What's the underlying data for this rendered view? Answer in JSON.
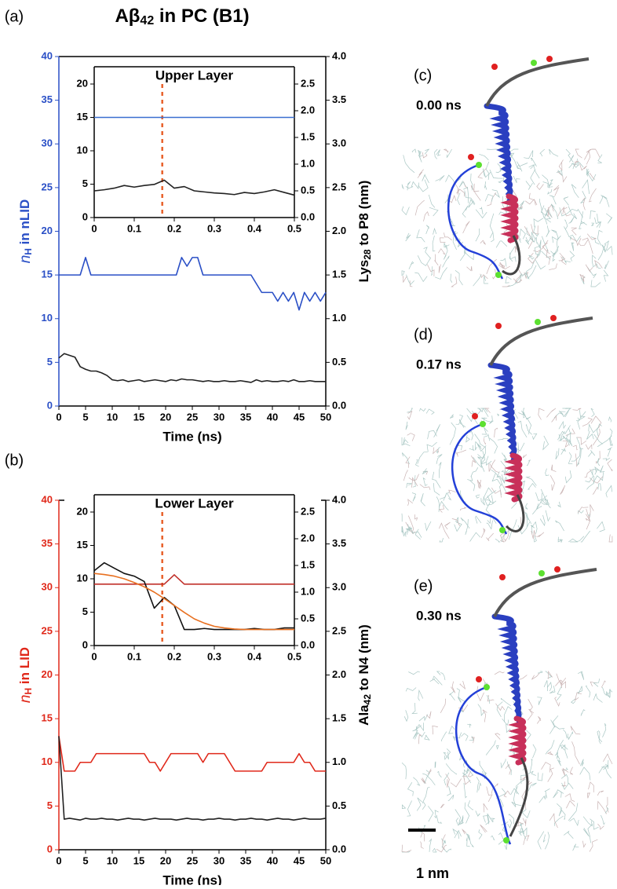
{
  "title": [
    "Aβ",
    "42",
    " in PC (B1)"
  ],
  "chart_data": [
    {
      "type": "line",
      "label": "(a)",
      "xlabel": "Time (ns)",
      "ylabel": [
        "n",
        "H",
        " in nLID"
      ],
      "y2label": [
        "Lys",
        "28",
        " to P8 (nm)"
      ],
      "ycolor": "#2a4fc6",
      "x": [
        0,
        1,
        2,
        3,
        4,
        5,
        6,
        7,
        8,
        9,
        10,
        11,
        12,
        13,
        14,
        15,
        16,
        17,
        18,
        19,
        20,
        21,
        22,
        23,
        24,
        25,
        26,
        27,
        28,
        29,
        30,
        31,
        32,
        33,
        34,
        35,
        36,
        37,
        38,
        39,
        40,
        41,
        42,
        43,
        44,
        45,
        46,
        47,
        48,
        49,
        50
      ],
      "xlim": [
        0,
        50
      ],
      "xticks": [
        0,
        5,
        10,
        15,
        20,
        25,
        30,
        35,
        40,
        45,
        50
      ],
      "ylim": [
        0,
        40
      ],
      "yticks": [
        0,
        5,
        10,
        15,
        20,
        25,
        30,
        35,
        40
      ],
      "y2lim": [
        0,
        4
      ],
      "y2ticks": [
        {
          "value": 0,
          "label": "0.0"
        },
        0.5,
        {
          "value": 1,
          "label": "1.0"
        },
        1.5,
        {
          "value": 2,
          "label": "2.0"
        },
        2.5,
        {
          "value": 3,
          "label": "3.0"
        },
        3.5,
        {
          "value": 4,
          "label": "4.0"
        }
      ],
      "series": [
        {
          "color": "#2a4fc6",
          "values": [
            15,
            15,
            15,
            15,
            15,
            17,
            15,
            15,
            15,
            15,
            15,
            15,
            15,
            15,
            15,
            15,
            15,
            15,
            15,
            15,
            15,
            15,
            15,
            17,
            16,
            17,
            17,
            15,
            15,
            15,
            15,
            15,
            15,
            15,
            15,
            15,
            15,
            14,
            13,
            13,
            13,
            12,
            13,
            12,
            13,
            11,
            13,
            12,
            13,
            12,
            13
          ]
        },
        {
          "color": "#222222",
          "axis": "y2",
          "values": [
            0.55,
            0.6,
            0.58,
            0.56,
            0.45,
            0.42,
            0.4,
            0.4,
            0.38,
            0.35,
            0.3,
            0.29,
            0.3,
            0.28,
            0.29,
            0.3,
            0.28,
            0.29,
            0.3,
            0.29,
            0.28,
            0.3,
            0.29,
            0.31,
            0.3,
            0.3,
            0.29,
            0.28,
            0.29,
            0.28,
            0.28,
            0.29,
            0.28,
            0.28,
            0.29,
            0.28,
            0.27,
            0.3,
            0.28,
            0.29,
            0.28,
            0.28,
            0.29,
            0.28,
            0.3,
            0.28,
            0.28,
            0.29,
            0.28,
            0.28,
            0.28
          ]
        }
      ]
    },
    {
      "type": "line",
      "inset": true,
      "title": "Upper Layer",
      "vline": 0.17,
      "x": [
        0,
        0.025,
        0.05,
        0.075,
        0.1,
        0.125,
        0.15,
        0.175,
        0.2,
        0.225,
        0.25,
        0.275,
        0.3,
        0.325,
        0.35,
        0.375,
        0.4,
        0.425,
        0.45,
        0.475,
        0.5
      ],
      "xlim": [
        0,
        0.5
      ],
      "xticks": [
        0,
        0.1,
        0.2,
        0.3,
        0.4,
        0.5
      ],
      "ylim": [
        0,
        20
      ],
      "yticks": [
        0,
        5,
        10,
        15,
        20
      ],
      "y2lim": [
        0,
        2.5
      ],
      "y2ticks": [
        {
          "value": 0,
          "label": "0.0"
        },
        0.5,
        {
          "value": 1,
          "label": "1.0"
        },
        1.5,
        {
          "value": 2,
          "label": "2.0"
        },
        2.5
      ],
      "series": [
        {
          "color": "#3a6fd0",
          "values": [
            15,
            15,
            15,
            15,
            15,
            15,
            15,
            15,
            15,
            15,
            15,
            15,
            15,
            15,
            15,
            15,
            15,
            15,
            15,
            15,
            15
          ]
        },
        {
          "color": "#222222",
          "axis": "y2",
          "values": [
            0.5,
            0.52,
            0.55,
            0.6,
            0.57,
            0.6,
            0.62,
            0.7,
            0.55,
            0.58,
            0.5,
            0.48,
            0.46,
            0.45,
            0.43,
            0.47,
            0.45,
            0.48,
            0.52,
            0.47,
            0.42
          ]
        }
      ]
    },
    {
      "type": "line",
      "label": "(b)",
      "xlabel": "Time (ns)",
      "ylabel": [
        "n",
        "H",
        " in LID"
      ],
      "y2label": [
        "Ala",
        "42",
        " to N4 (nm)"
      ],
      "ycolor": "#e0281a",
      "x": [
        0,
        1,
        2,
        3,
        4,
        5,
        6,
        7,
        8,
        9,
        10,
        11,
        12,
        13,
        14,
        15,
        16,
        17,
        18,
        19,
        20,
        21,
        22,
        23,
        24,
        25,
        26,
        27,
        28,
        29,
        30,
        31,
        32,
        33,
        34,
        35,
        36,
        37,
        38,
        39,
        40,
        41,
        42,
        43,
        44,
        45,
        46,
        47,
        48,
        49,
        50
      ],
      "xlim": [
        0,
        50
      ],
      "xticks": [
        0,
        5,
        10,
        15,
        20,
        25,
        30,
        35,
        40,
        45,
        50
      ],
      "ylim": [
        0,
        40
      ],
      "yticks": [
        0,
        5,
        10,
        15,
        20,
        25,
        30,
        35,
        40
      ],
      "y2lim": [
        0,
        4
      ],
      "y2ticks": [
        {
          "value": 0,
          "label": "0.0"
        },
        0.5,
        {
          "value": 1,
          "label": "1.0"
        },
        1.5,
        {
          "value": 2,
          "label": "2.0"
        },
        2.5,
        {
          "value": 3,
          "label": "3.0"
        },
        3.5,
        {
          "value": 4,
          "label": "4.0"
        }
      ],
      "series": [
        {
          "color": "#e0281a",
          "values": [
            13,
            9,
            9,
            9,
            10,
            10,
            10,
            11,
            11,
            11,
            11,
            11,
            11,
            11,
            11,
            11,
            11,
            10,
            10,
            9,
            10,
            11,
            11,
            11,
            11,
            11,
            11,
            10,
            11,
            11,
            11,
            11,
            10,
            9,
            9,
            9,
            9,
            9,
            9,
            10,
            10,
            10,
            10,
            10,
            10,
            11,
            10,
            10,
            9,
            9,
            9
          ]
        },
        {
          "color": "#222222",
          "axis": "y2",
          "values": [
            1.3,
            0.35,
            0.36,
            0.35,
            0.34,
            0.36,
            0.35,
            0.35,
            0.36,
            0.35,
            0.35,
            0.34,
            0.35,
            0.36,
            0.35,
            0.35,
            0.34,
            0.35,
            0.36,
            0.35,
            0.35,
            0.35,
            0.34,
            0.35,
            0.36,
            0.35,
            0.35,
            0.34,
            0.35,
            0.35,
            0.36,
            0.35,
            0.35,
            0.34,
            0.35,
            0.35,
            0.36,
            0.35,
            0.35,
            0.34,
            0.35,
            0.36,
            0.35,
            0.35,
            0.34,
            0.35,
            0.36,
            0.35,
            0.35,
            0.35,
            0.36
          ]
        }
      ]
    },
    {
      "type": "line",
      "inset": true,
      "title": "Lower Layer",
      "vline": 0.17,
      "x": [
        0,
        0.025,
        0.05,
        0.075,
        0.1,
        0.125,
        0.15,
        0.175,
        0.2,
        0.225,
        0.25,
        0.275,
        0.3,
        0.325,
        0.35,
        0.375,
        0.4,
        0.425,
        0.45,
        0.475,
        0.5
      ],
      "xlim": [
        0,
        0.5
      ],
      "xticks": [
        0,
        0.1,
        0.2,
        0.3,
        0.4,
        0.5
      ],
      "ylim": [
        0,
        20
      ],
      "yticks": [
        0,
        5,
        10,
        15,
        20
      ],
      "y2lim": [
        0,
        2.5
      ],
      "y2ticks": [
        {
          "value": 0,
          "label": "0.0"
        },
        0.5,
        {
          "value": 1,
          "label": "1.0"
        },
        1.5,
        {
          "value": 2,
          "label": "2.0"
        },
        2.5
      ],
      "series": [
        {
          "color": "#c0302a",
          "values": [
            9.2,
            9.2,
            9.2,
            9.2,
            9.2,
            9.2,
            9.2,
            9.2,
            10.6,
            9.2,
            9.2,
            9.2,
            9.2,
            9.2,
            9.2,
            9.2,
            9.2,
            9.2,
            9.2,
            9.2,
            9.2
          ]
        },
        {
          "color": "#111111",
          "axis": "y2",
          "values": [
            1.4,
            1.55,
            1.45,
            1.35,
            1.3,
            1.2,
            0.7,
            0.9,
            0.75,
            0.3,
            0.3,
            0.32,
            0.3,
            0.3,
            0.3,
            0.3,
            0.32,
            0.3,
            0.3,
            0.33,
            0.33
          ]
        },
        {
          "color": "#e87020",
          "axis": "y2",
          "values": [
            1.35,
            1.33,
            1.3,
            1.25,
            1.18,
            1.1,
            1.0,
            0.88,
            0.75,
            0.62,
            0.5,
            0.42,
            0.36,
            0.33,
            0.31,
            0.3,
            0.3,
            0.3,
            0.3,
            0.3,
            0.3
          ]
        }
      ]
    }
  ],
  "snapshots": [
    {
      "label": "(c)",
      "time": "0.00 ns"
    },
    {
      "label": "(d)",
      "time": "0.17 ns"
    },
    {
      "label": "(e)",
      "time": "0.30 ns"
    }
  ],
  "scale_bar": "1 nm"
}
